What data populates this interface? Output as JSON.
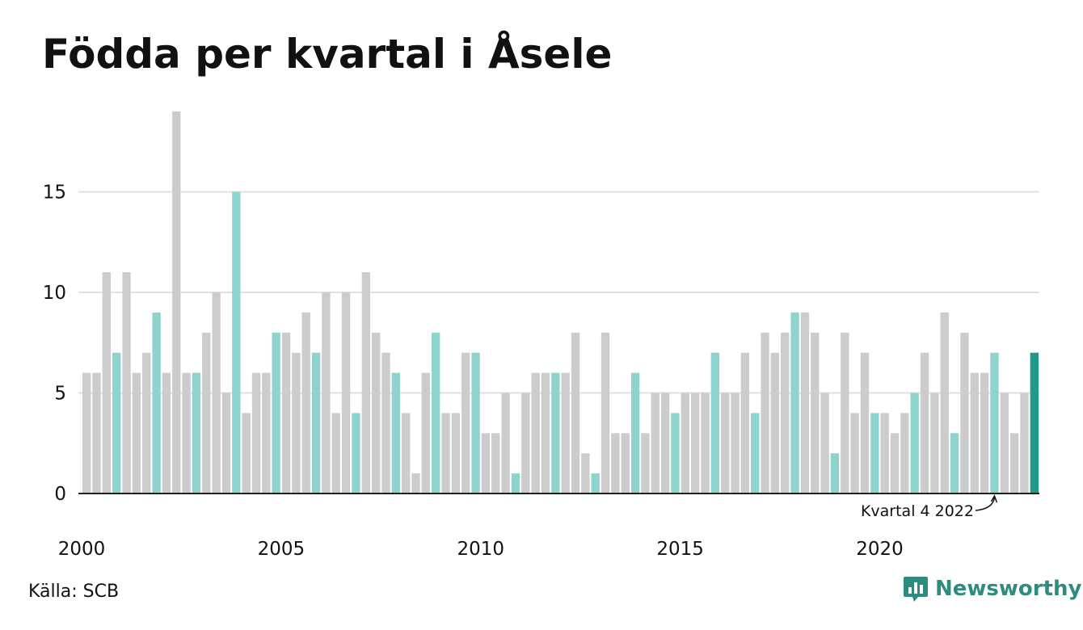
{
  "chart_data": {
    "type": "bar",
    "title": "Födda per kvartal i Åsele",
    "xlabel": "",
    "ylabel": "",
    "ylim": [
      0,
      19
    ],
    "yticks": [
      0,
      5,
      10,
      15
    ],
    "x_tick_labels": [
      "2000",
      "2005",
      "2010",
      "2015",
      "2020"
    ],
    "first_year": 2000,
    "highlight_quarter": 4,
    "grid": true,
    "values": [
      6,
      6,
      11,
      7,
      11,
      6,
      7,
      9,
      6,
      19,
      6,
      6,
      8,
      10,
      5,
      15,
      4,
      6,
      6,
      8,
      8,
      7,
      9,
      7,
      10,
      4,
      10,
      4,
      11,
      8,
      7,
      6,
      4,
      1,
      6,
      8,
      4,
      4,
      7,
      7,
      3,
      3,
      5,
      1,
      5,
      6,
      6,
      6,
      6,
      8,
      2,
      1,
      8,
      3,
      3,
      6,
      3,
      5,
      5,
      4,
      5,
      5,
      5,
      7,
      5,
      5,
      7,
      4,
      8,
      7,
      8,
      9,
      9,
      8,
      5,
      2,
      8,
      4,
      7,
      4,
      4,
      3,
      4,
      5,
      7,
      5,
      9,
      3,
      8,
      6,
      6,
      7,
      5,
      3,
      5,
      7
    ],
    "annotation": {
      "text": "Kvartal 4 2022",
      "bar_index": 91
    },
    "colors": {
      "default": "#cccccc",
      "highlight": "#8ed4cc",
      "latest": "#1f9a8a"
    }
  },
  "footer": {
    "source": "Källa: SCB",
    "brand": "Newsworthy"
  },
  "icons": {
    "brand_logo": "bar-chart-speech-bubble-icon"
  }
}
